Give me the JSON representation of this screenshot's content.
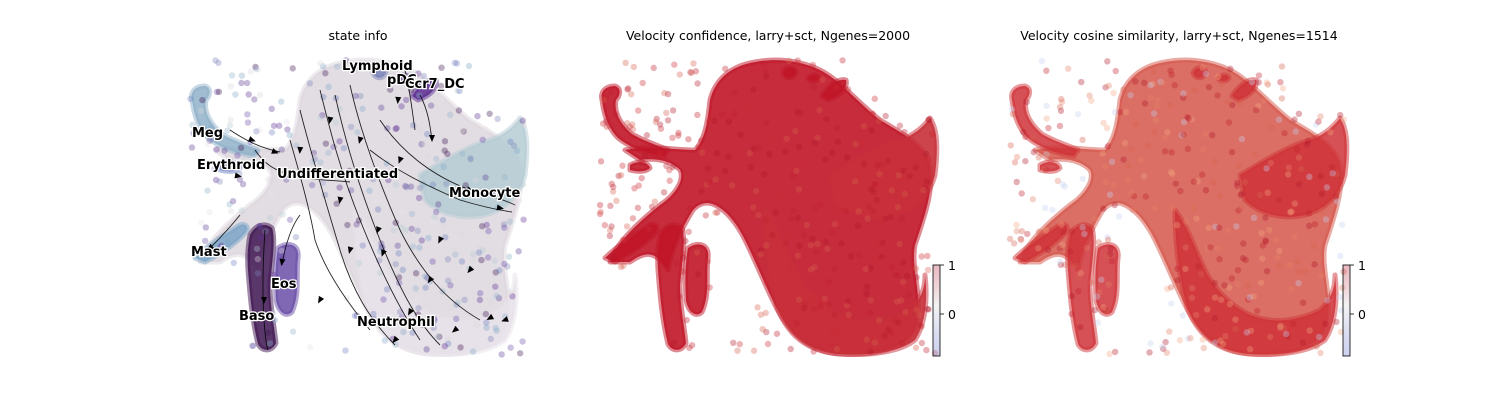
{
  "panels": [
    {
      "title": "state info",
      "clusters": [
        {
          "name": "Lymphoid",
          "color": "#7b84b8"
        },
        {
          "name": "pDC",
          "color": "#5b3f96"
        },
        {
          "name": "Ccr7_DC",
          "color": "#5c2d91"
        },
        {
          "name": "Meg",
          "color": "#8fb2c9"
        },
        {
          "name": "Erythroid",
          "color": "#6e7fbf"
        },
        {
          "name": "Undifferentiated",
          "color": "#ddd7de"
        },
        {
          "name": "Monocyte",
          "color": "#b5ccd3"
        },
        {
          "name": "Mast",
          "color": "#7da5c8"
        },
        {
          "name": "Eos",
          "color": "#6a4ea8"
        },
        {
          "name": "Baso",
          "color": "#3d1450"
        },
        {
          "name": "Neutrophil",
          "color": "#e8e2ea"
        }
      ]
    },
    {
      "title": "Velocity confidence, larry+sct, Ngenes=2000",
      "colorbar": {
        "ticks": [
          "1",
          "0"
        ],
        "colors": [
          "#3b4cc0",
          "#dddddd",
          "#b40426"
        ]
      }
    },
    {
      "title": "Velocity cosine similarity, larry+sct, Ngenes=1514",
      "colorbar": {
        "ticks": [
          "1",
          "0"
        ],
        "colors": [
          "#3b4cc0",
          "#dddddd",
          "#b40426"
        ]
      }
    }
  ],
  "chart_data": [
    {
      "type": "scatter",
      "title": "state info",
      "grid": false,
      "legend": "on data",
      "labels": [
        "Lymphoid",
        "pDC",
        "Ccr7_DC",
        "Meg",
        "Erythroid",
        "Undifferentiated",
        "Monocyte",
        "Mast",
        "Eos",
        "Baso",
        "Neutrophil"
      ]
    },
    {
      "type": "scatter",
      "title": "Velocity confidence, larry+sct, Ngenes=2000",
      "grid": false,
      "colorbar_ticks": [
        1,
        0
      ]
    },
    {
      "type": "scatter",
      "title": "Velocity cosine similarity, larry+sct, Ngenes=1514",
      "grid": false,
      "colorbar_ticks": [
        1,
        0
      ]
    }
  ]
}
